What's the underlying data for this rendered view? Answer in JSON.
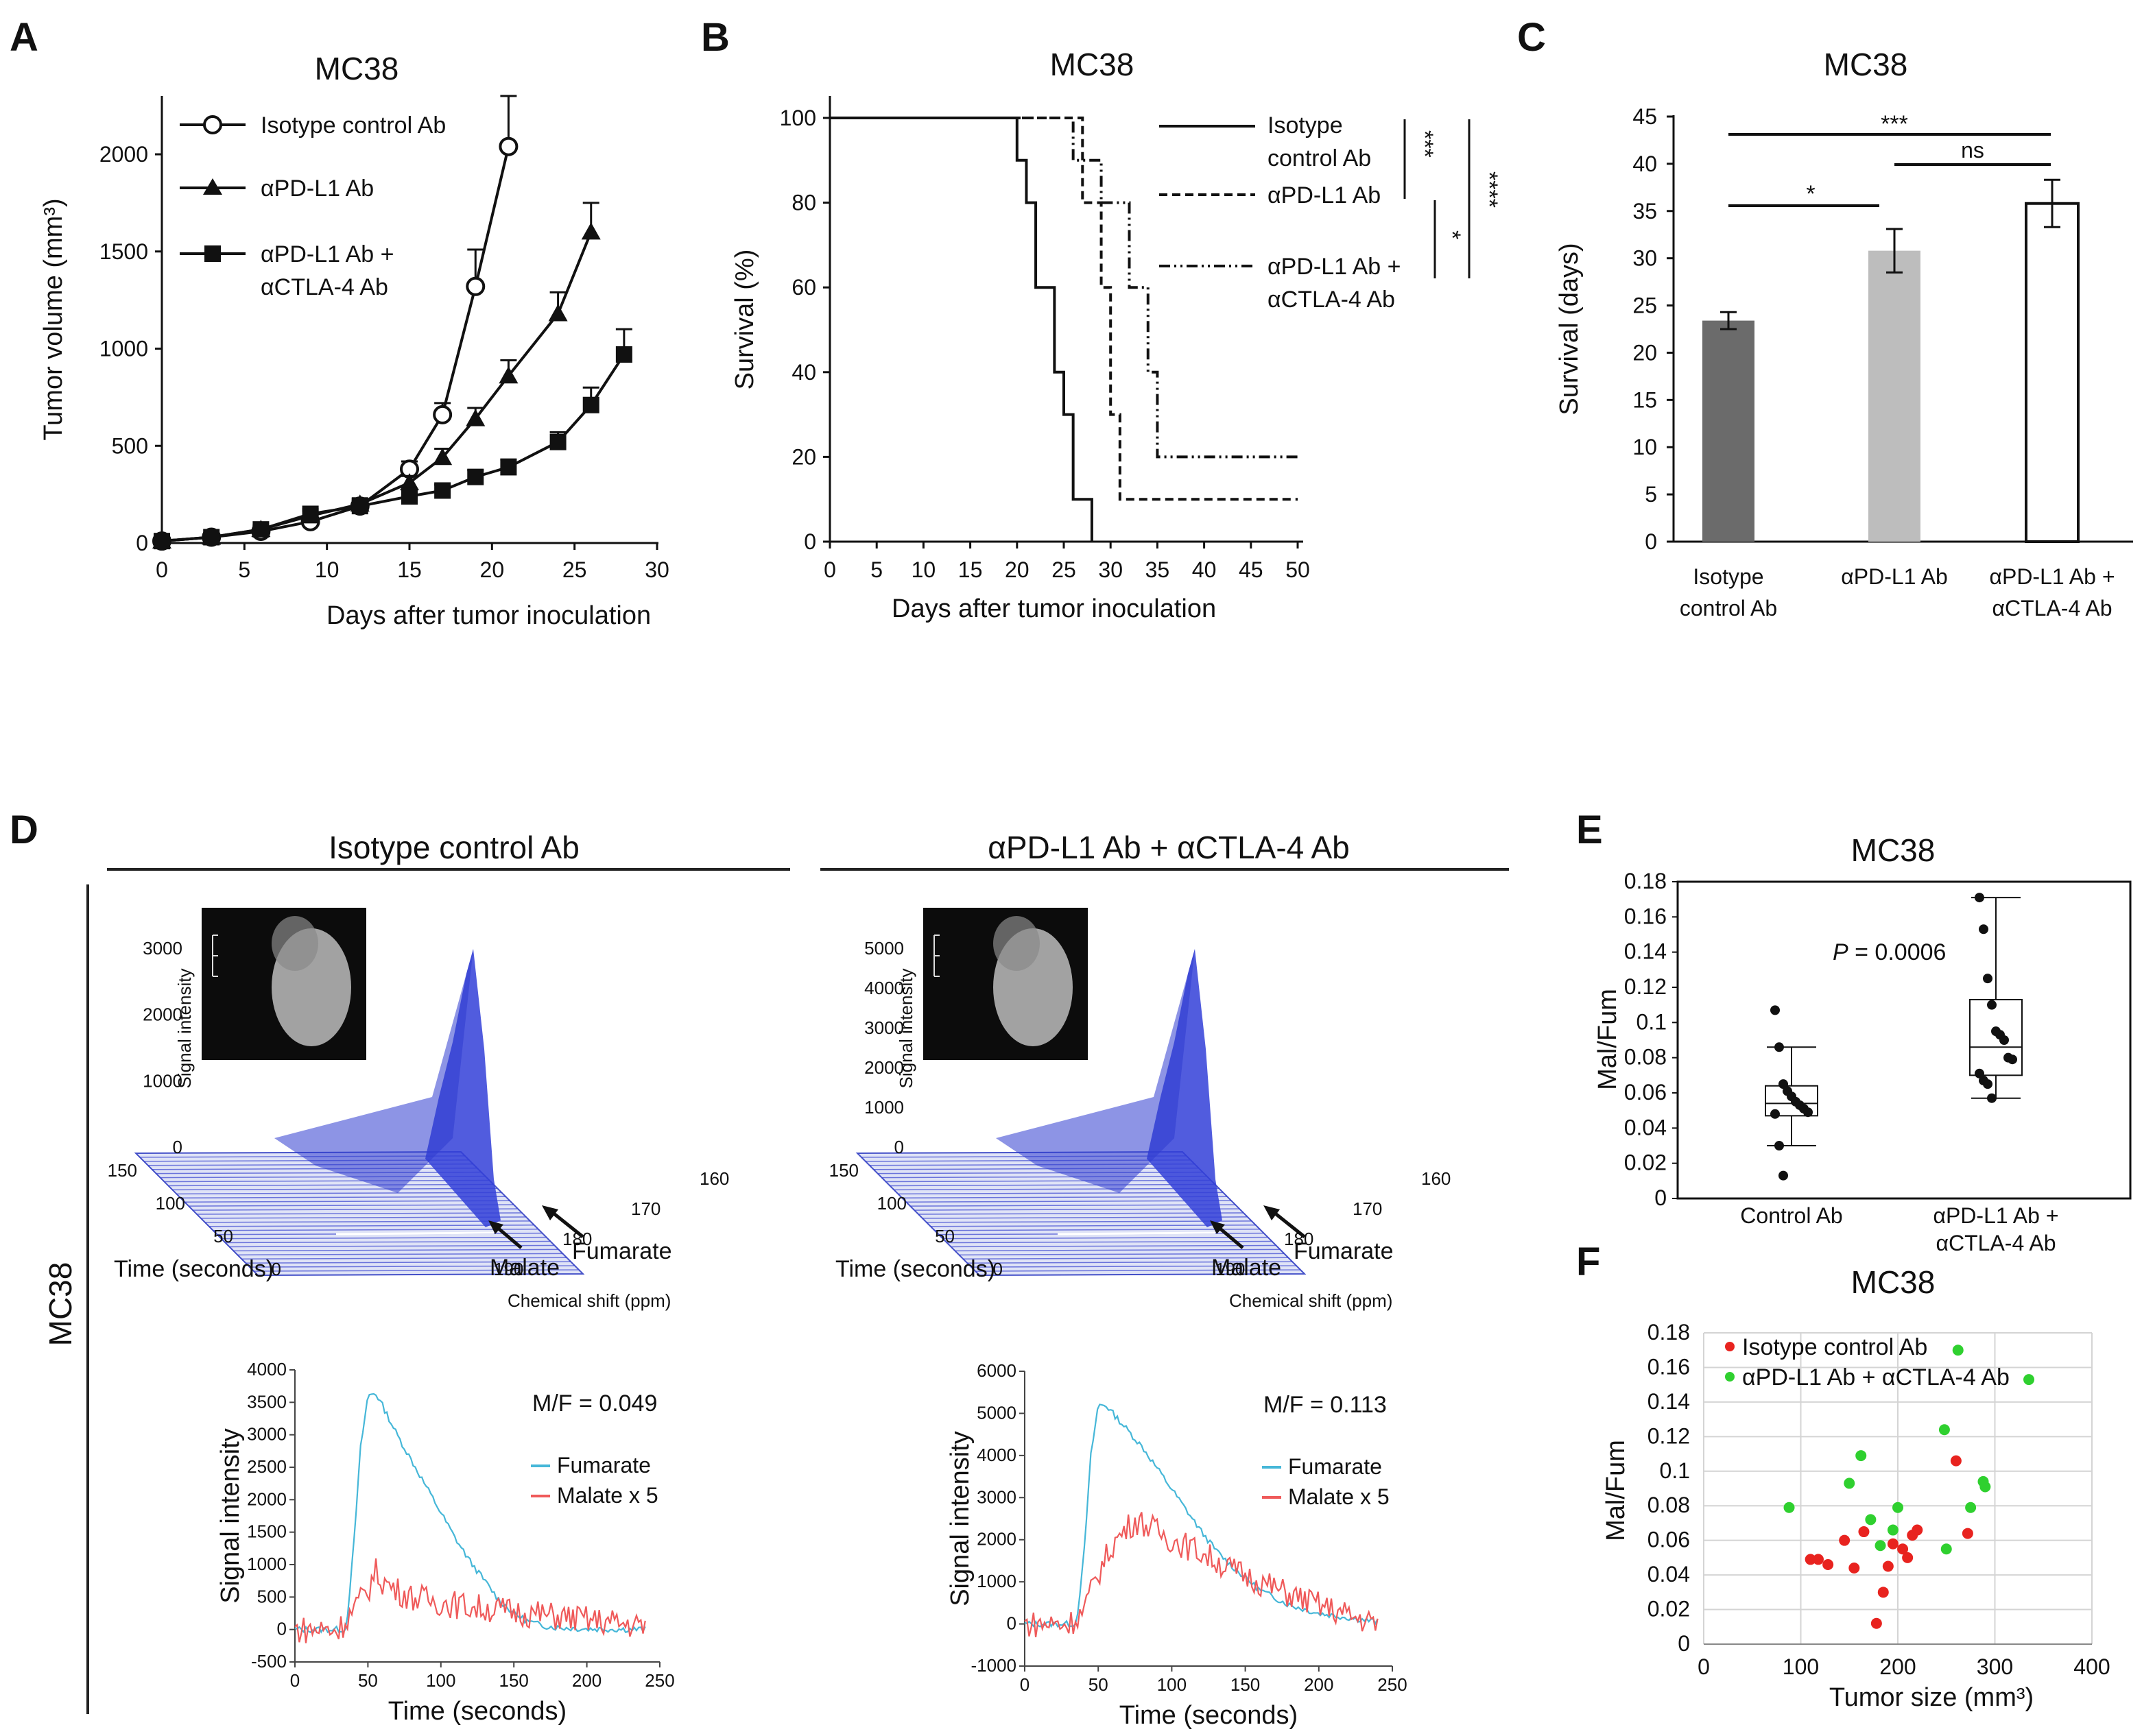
{
  "panels": {
    "A": {
      "letter": "A",
      "chart_data": {
        "type": "line",
        "title": "MC38",
        "xlabel": "Days after tumor inoculation",
        "ylabel": "Tumor volume (mm³)",
        "xlim": [
          0,
          30
        ],
        "ylim": [
          0,
          2300
        ],
        "xticks": [
          0,
          5,
          10,
          15,
          20,
          25,
          30
        ],
        "yticks": [
          0,
          500,
          1000,
          1500,
          2000
        ],
        "series": [
          {
            "name": "Isotype control Ab",
            "marker": "circle",
            "x": [
              0,
              3,
              6,
              9,
              12,
              15,
              17,
              19,
              21
            ],
            "y": [
              10,
              30,
              60,
              110,
              190,
              380,
              660,
              1320,
              2040
            ],
            "err": [
              15,
              15,
              20,
              25,
              30,
              40,
              60,
              190,
              260
            ]
          },
          {
            "name": "αPD-L1 Ab",
            "marker": "triangle",
            "x": [
              0,
              3,
              6,
              9,
              12,
              15,
              17,
              19,
              21,
              24,
              26
            ],
            "y": [
              10,
              30,
              70,
              140,
              200,
              310,
              440,
              640,
              860,
              1180,
              1600
            ],
            "err": [
              15,
              15,
              20,
              25,
              30,
              35,
              45,
              55,
              80,
              110,
              150
            ]
          },
          {
            "name": "αPD-L1 Ab + αCTLA-4 Ab",
            "marker": "square",
            "x": [
              0,
              3,
              6,
              9,
              12,
              15,
              17,
              19,
              21,
              24,
              26,
              28
            ],
            "y": [
              10,
              30,
              70,
              150,
              190,
              240,
              270,
              340,
              390,
              520,
              710,
              970
            ],
            "err": [
              15,
              15,
              20,
              25,
              25,
              30,
              30,
              35,
              40,
              50,
              90,
              130
            ]
          }
        ]
      }
    },
    "B": {
      "letter": "B",
      "chart_data": {
        "type": "line",
        "title": "MC38",
        "xlabel": "Days after tumor inoculation",
        "ylabel": "Survival (%)",
        "xlim": [
          0,
          50
        ],
        "ylim": [
          0,
          100
        ],
        "xticks": [
          0,
          5,
          10,
          15,
          20,
          25,
          30,
          35,
          40,
          45,
          50
        ],
        "yticks": [
          0,
          20,
          40,
          60,
          80,
          100
        ],
        "series": [
          {
            "name": "Isotype control Ab",
            "style": "solid",
            "x": [
              0,
              19,
              20,
              21,
              22,
              24,
              25,
              26,
              28,
              28
            ],
            "y": [
              100,
              100,
              90,
              80,
              60,
              40,
              30,
              10,
              10,
              0
            ]
          },
          {
            "name": "αPD-L1 Ab",
            "style": "dashed",
            "x": [
              0,
              26,
              27,
              29,
              30,
              31,
              50
            ],
            "y": [
              100,
              100,
              80,
              60,
              30,
              10,
              10
            ]
          },
          {
            "name": "αPD-L1 Ab + αCTLA-4 Ab",
            "style": "dashdot",
            "x": [
              0,
              25,
              26,
              29,
              32,
              34,
              35,
              50
            ],
            "y": [
              100,
              100,
              90,
              80,
              60,
              40,
              20,
              20
            ]
          }
        ],
        "legend_lines": [
          [
            "Isotype",
            "control Ab"
          ],
          [
            "αPD-L1 Ab"
          ],
          [
            "αPD-L1 Ab +",
            "αCTLA-4 Ab"
          ]
        ],
        "significance": [
          "***",
          "****",
          "*"
        ]
      }
    },
    "C": {
      "letter": "C",
      "chart_data": {
        "type": "bar",
        "title": "MC38",
        "ylabel": "Survival (days)",
        "ylim": [
          0,
          45
        ],
        "yticks": [
          0,
          5,
          10,
          15,
          20,
          25,
          30,
          35,
          40,
          45
        ],
        "categories": [
          [
            "Isotype",
            "control Ab"
          ],
          [
            "αPD-L1 Ab"
          ],
          [
            "αPD-L1 Ab +",
            "αCTLA-4 Ab"
          ]
        ],
        "values": [
          23.4,
          30.8,
          35.8
        ],
        "errors": [
          0.9,
          2.3,
          2.5
        ],
        "colors": [
          "#6b6b6b",
          "#bdbdbd",
          "#ffffff"
        ],
        "significance": [
          "***",
          "ns",
          "*"
        ]
      }
    },
    "D": {
      "letter": "D",
      "row_label": "MC38",
      "left": {
        "header": "Isotype control Ab",
        "surface_ylabel": "Signal intensity",
        "surface_yticks": [
          "3000",
          "2000",
          "1000",
          "0"
        ],
        "time_ticks": [
          "150",
          "100",
          "50",
          "0"
        ],
        "time_label": "Time (seconds)",
        "shift_ticks": [
          "190",
          "180",
          "170",
          "160"
        ],
        "shift_label": "Chemical shift (ppm)",
        "malate": "Malate",
        "fumarate": "Fumarate",
        "mf_ratio": "M/F = 0.049",
        "chart_data": {
          "type": "line",
          "xlabel": "Time (seconds)",
          "ylabel": "Signal intensity",
          "xlim": [
            0,
            250
          ],
          "ylim": [
            -500,
            4000
          ],
          "xticks": [
            0,
            50,
            100,
            150,
            200,
            250
          ],
          "yticks": [
            -500,
            0,
            500,
            1000,
            1500,
            2000,
            2500,
            3000,
            3500,
            4000
          ],
          "series": [
            {
              "name": "Fumarate",
              "color": "#46b7d8",
              "x": [
                0,
                35,
                40,
                45,
                50,
                55,
                60,
                70,
                80,
                90,
                100,
                110,
                120,
                130,
                140,
                150,
                160,
                170,
                180,
                200,
                240
              ],
              "y": [
                0,
                0,
                1200,
                2800,
                3600,
                3650,
                3450,
                3000,
                2600,
                2200,
                1800,
                1400,
                1050,
                750,
                450,
                250,
                120,
                60,
                30,
                10,
                0
              ]
            },
            {
              "name": "Malate x 5",
              "color": "#ef5a5a",
              "x": [
                0,
                30,
                40,
                50,
                55,
                60,
                70,
                80,
                100,
                120,
                140,
                160,
                180,
                200,
                220,
                240
              ],
              "y": [
                0,
                0,
                300,
                600,
                900,
                750,
                600,
                500,
                420,
                350,
                300,
                250,
                200,
                150,
                100,
                50
              ]
            }
          ]
        }
      },
      "right": {
        "header": "αPD-L1 Ab + αCTLA-4 Ab",
        "surface_ylabel": "Signal intensity",
        "surface_yticks": [
          "5000",
          "4000",
          "3000",
          "2000",
          "1000",
          "0"
        ],
        "time_ticks": [
          "150",
          "100",
          "50",
          "0"
        ],
        "time_label": "Time (seconds)",
        "shift_ticks": [
          "190",
          "180",
          "170",
          "160"
        ],
        "shift_label": "Chemical shift (ppm)",
        "malate": "Malate",
        "fumarate": "Fumarate",
        "mf_ratio": "M/F = 0.113",
        "chart_data": {
          "type": "line",
          "xlabel": "Time (seconds)",
          "ylabel": "Signal intensity",
          "xlim": [
            0,
            250
          ],
          "ylim": [
            -1000,
            6000
          ],
          "xticks": [
            0,
            50,
            100,
            150,
            200,
            250
          ],
          "yticks": [
            -1000,
            0,
            1000,
            2000,
            3000,
            4000,
            5000,
            6000
          ],
          "series": [
            {
              "name": "Fumarate",
              "color": "#46b7d8",
              "x": [
                0,
                35,
                40,
                45,
                50,
                55,
                60,
                70,
                80,
                90,
                100,
                110,
                120,
                130,
                140,
                150,
                160,
                180,
                200,
                240
              ],
              "y": [
                0,
                0,
                1500,
                4000,
                5200,
                5200,
                5000,
                4600,
                4200,
                3700,
                3200,
                2700,
                2200,
                1750,
                1400,
                1100,
                800,
                450,
                250,
                50
              ]
            },
            {
              "name": "Malate x 5",
              "color": "#ef5a5a",
              "x": [
                0,
                30,
                40,
                50,
                60,
                70,
                75,
                80,
                90,
                100,
                120,
                140,
                160,
                180,
                200,
                220,
                240
              ],
              "y": [
                0,
                0,
                300,
                1200,
                1900,
                2300,
                2450,
                2400,
                2200,
                2000,
                1700,
                1300,
                1000,
                700,
                450,
                200,
                0
              ]
            }
          ]
        }
      },
      "legend_fumarate": "Fumarate",
      "legend_malate": "Malate x 5"
    },
    "E": {
      "letter": "E",
      "chart_data": {
        "type": "box",
        "title": "MC38",
        "ylabel": "Mal/Fum",
        "ylim": [
          0,
          0.18
        ],
        "yticks": [
          0,
          0.02,
          0.04,
          0.06,
          0.08,
          0.1,
          0.12,
          0.14,
          0.16,
          0.18
        ],
        "ytick_labels": [
          "0",
          "0.02",
          "0.04",
          "0.06",
          "0.08",
          "0.1",
          "0.12",
          "0.14",
          "0.16",
          "0.18"
        ],
        "categories": [
          "Control Ab",
          [
            "αPD-L1 Ab +",
            "αCTLA-4 Ab"
          ]
        ],
        "boxes": [
          {
            "min": 0.03,
            "q1": 0.047,
            "median": 0.054,
            "q3": 0.064,
            "max": 0.086,
            "points": [
              0.107,
              0.086,
              0.065,
              0.061,
              0.058,
              0.055,
              0.053,
              0.051,
              0.049,
              0.048,
              0.03,
              0.013
            ]
          },
          {
            "min": 0.057,
            "q1": 0.07,
            "median": 0.086,
            "q3": 0.113,
            "max": 0.171,
            "points": [
              0.171,
              0.153,
              0.125,
              0.11,
              0.095,
              0.093,
              0.09,
              0.08,
              0.079,
              0.071,
              0.067,
              0.065,
              0.057
            ]
          }
        ],
        "p_label": "P",
        "p_value": " = 0.0006"
      }
    },
    "F": {
      "letter": "F",
      "chart_data": {
        "type": "scatter",
        "title": "MC38",
        "xlabel": "Tumor size (mm³)",
        "ylabel": "Mal/Fum",
        "xlim": [
          0,
          400
        ],
        "ylim": [
          0,
          0.18
        ],
        "xticks": [
          0,
          100,
          200,
          300,
          400
        ],
        "yticks": [
          0,
          0.02,
          0.04,
          0.06,
          0.08,
          0.1,
          0.12,
          0.14,
          0.16,
          0.18
        ],
        "ytick_labels": [
          "0",
          "0.02",
          "0.04",
          "0.06",
          "0.08",
          "0.1",
          "0.12",
          "0.14",
          "0.16",
          "0.18"
        ],
        "series": [
          {
            "name": "Isotype control Ab",
            "color": "#e8231f",
            "points": [
              [
                110,
                0.049
              ],
              [
                118,
                0.049
              ],
              [
                128,
                0.046
              ],
              [
                145,
                0.06
              ],
              [
                155,
                0.044
              ],
              [
                165,
                0.065
              ],
              [
                178,
                0.012
              ],
              [
                185,
                0.03
              ],
              [
                190,
                0.045
              ],
              [
                195,
                0.058
              ],
              [
                205,
                0.055
              ],
              [
                210,
                0.05
              ],
              [
                215,
                0.063
              ],
              [
                220,
                0.066
              ],
              [
                260,
                0.106
              ],
              [
                272,
                0.064
              ]
            ]
          },
          {
            "name": "αPD-L1 Ab + αCTLA-4 Ab",
            "color": "#2fd02f",
            "points": [
              [
                88,
                0.079
              ],
              [
                150,
                0.093
              ],
              [
                162,
                0.109
              ],
              [
                172,
                0.072
              ],
              [
                182,
                0.057
              ],
              [
                195,
                0.066
              ],
              [
                200,
                0.079
              ],
              [
                248,
                0.124
              ],
              [
                250,
                0.055
              ],
              [
                262,
                0.17
              ],
              [
                275,
                0.079
              ],
              [
                288,
                0.094
              ],
              [
                290,
                0.091
              ],
              [
                335,
                0.153
              ]
            ]
          }
        ]
      }
    }
  }
}
